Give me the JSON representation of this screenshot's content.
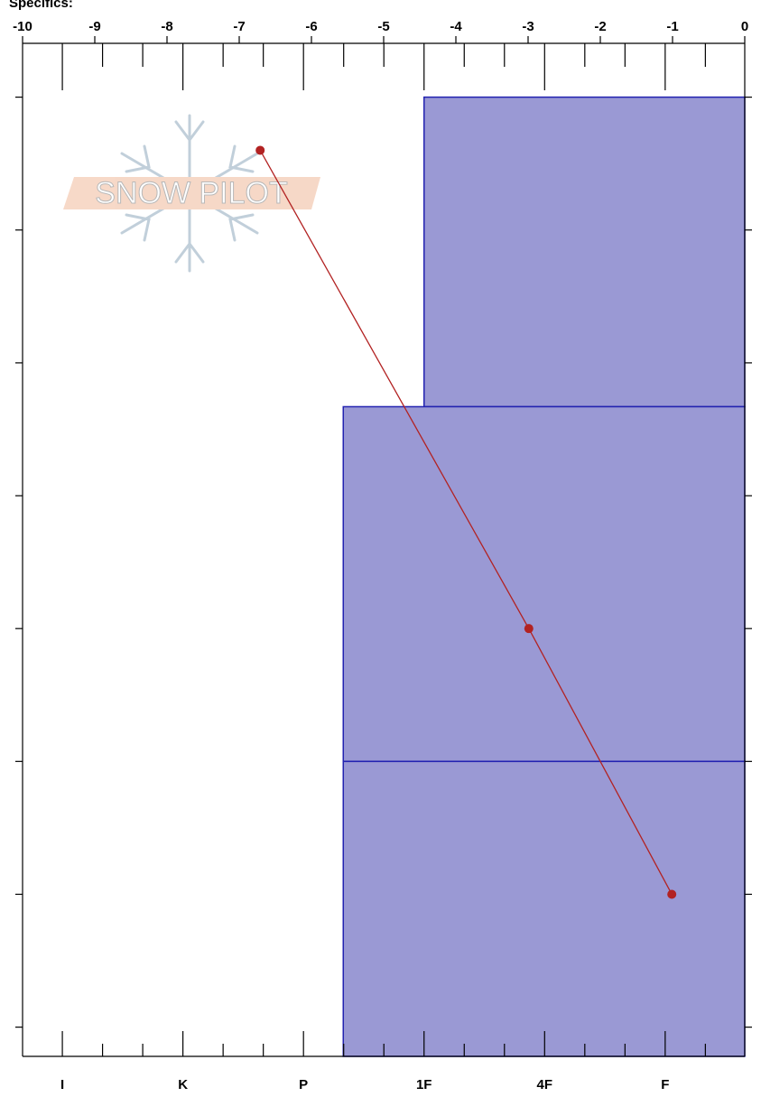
{
  "header": "Specifics:",
  "watermark": "SNOW PILOT",
  "chart_data": {
    "type": "snow-profile",
    "xlim": [
      -10,
      0
    ],
    "xticks": [
      -10,
      -9,
      -8,
      -7,
      -6,
      -5,
      -4,
      -3,
      -2,
      -1,
      0
    ],
    "x2lim": [
      6.33,
      0.34
    ],
    "x2ticks": [
      {
        "value": 6,
        "label": "I"
      },
      {
        "value": 5,
        "label": "K"
      },
      {
        "value": 4,
        "label": "P"
      },
      {
        "value": 3,
        "label": "1F"
      },
      {
        "value": 2,
        "label": "4F"
      },
      {
        "value": 1,
        "label": "F"
      }
    ],
    "ylim": [
      -4.05,
      72.2
    ],
    "yticks": [
      0,
      10,
      20,
      30,
      40,
      50,
      60,
      70
    ],
    "layers": {
      "top": [
        0,
        23.3,
        50
      ],
      "bottom": [
        23.3,
        50,
        72.2
      ],
      "hardness": [
        3,
        3.67,
        3.67
      ],
      "color": "#9a99d4",
      "edge": "#2222b0"
    },
    "temperature": {
      "depth": [
        4,
        40,
        60
      ],
      "values": [
        -6.71,
        -2.99,
        -1.01
      ],
      "color": "#b22222"
    }
  }
}
